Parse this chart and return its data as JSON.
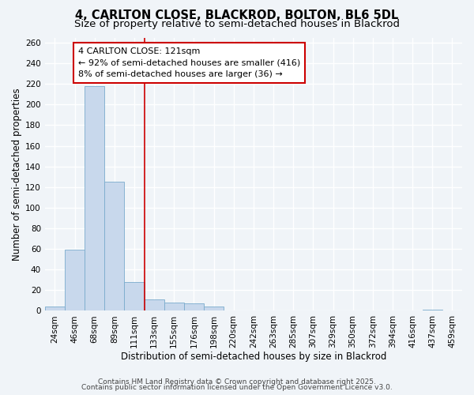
{
  "title_line1": "4, CARLTON CLOSE, BLACKROD, BOLTON, BL6 5DL",
  "title_line2": "Size of property relative to semi-detached houses in Blackrod",
  "xlabel": "Distribution of semi-detached houses by size in Blackrod",
  "ylabel": "Number of semi-detached properties",
  "bin_labels": [
    "24sqm",
    "46sqm",
    "68sqm",
    "89sqm",
    "111sqm",
    "133sqm",
    "155sqm",
    "176sqm",
    "198sqm",
    "220sqm",
    "242sqm",
    "263sqm",
    "285sqm",
    "307sqm",
    "329sqm",
    "350sqm",
    "372sqm",
    "394sqm",
    "416sqm",
    "437sqm",
    "459sqm"
  ],
  "bar_values": [
    4,
    59,
    218,
    125,
    28,
    11,
    8,
    7,
    4,
    0,
    0,
    0,
    0,
    0,
    0,
    0,
    0,
    0,
    0,
    1,
    0
  ],
  "bar_color": "#c8d8ec",
  "bar_edge_color": "#7aabcc",
  "vline_x": 4.5,
  "vline_color": "#cc0000",
  "annotation_text": "4 CARLTON CLOSE: 121sqm\n← 92% of semi-detached houses are smaller (416)\n8% of semi-detached houses are larger (36) →",
  "annotation_box_color": "#ffffff",
  "annotation_box_edge": "#cc0000",
  "ylim": [
    0,
    265
  ],
  "yticks": [
    0,
    20,
    40,
    60,
    80,
    100,
    120,
    140,
    160,
    180,
    200,
    220,
    240,
    260
  ],
  "footer_line1": "Contains HM Land Registry data © Crown copyright and database right 2025.",
  "footer_line2": "Contains public sector information licensed under the Open Government Licence v3.0.",
  "bg_color": "#f0f4f8",
  "plot_bg_color": "#f0f4f8",
  "grid_color": "#ffffff",
  "title_fontsize": 10.5,
  "subtitle_fontsize": 9.5,
  "axis_label_fontsize": 8.5,
  "tick_fontsize": 7.5,
  "annotation_fontsize": 8,
  "footer_fontsize": 6.5
}
